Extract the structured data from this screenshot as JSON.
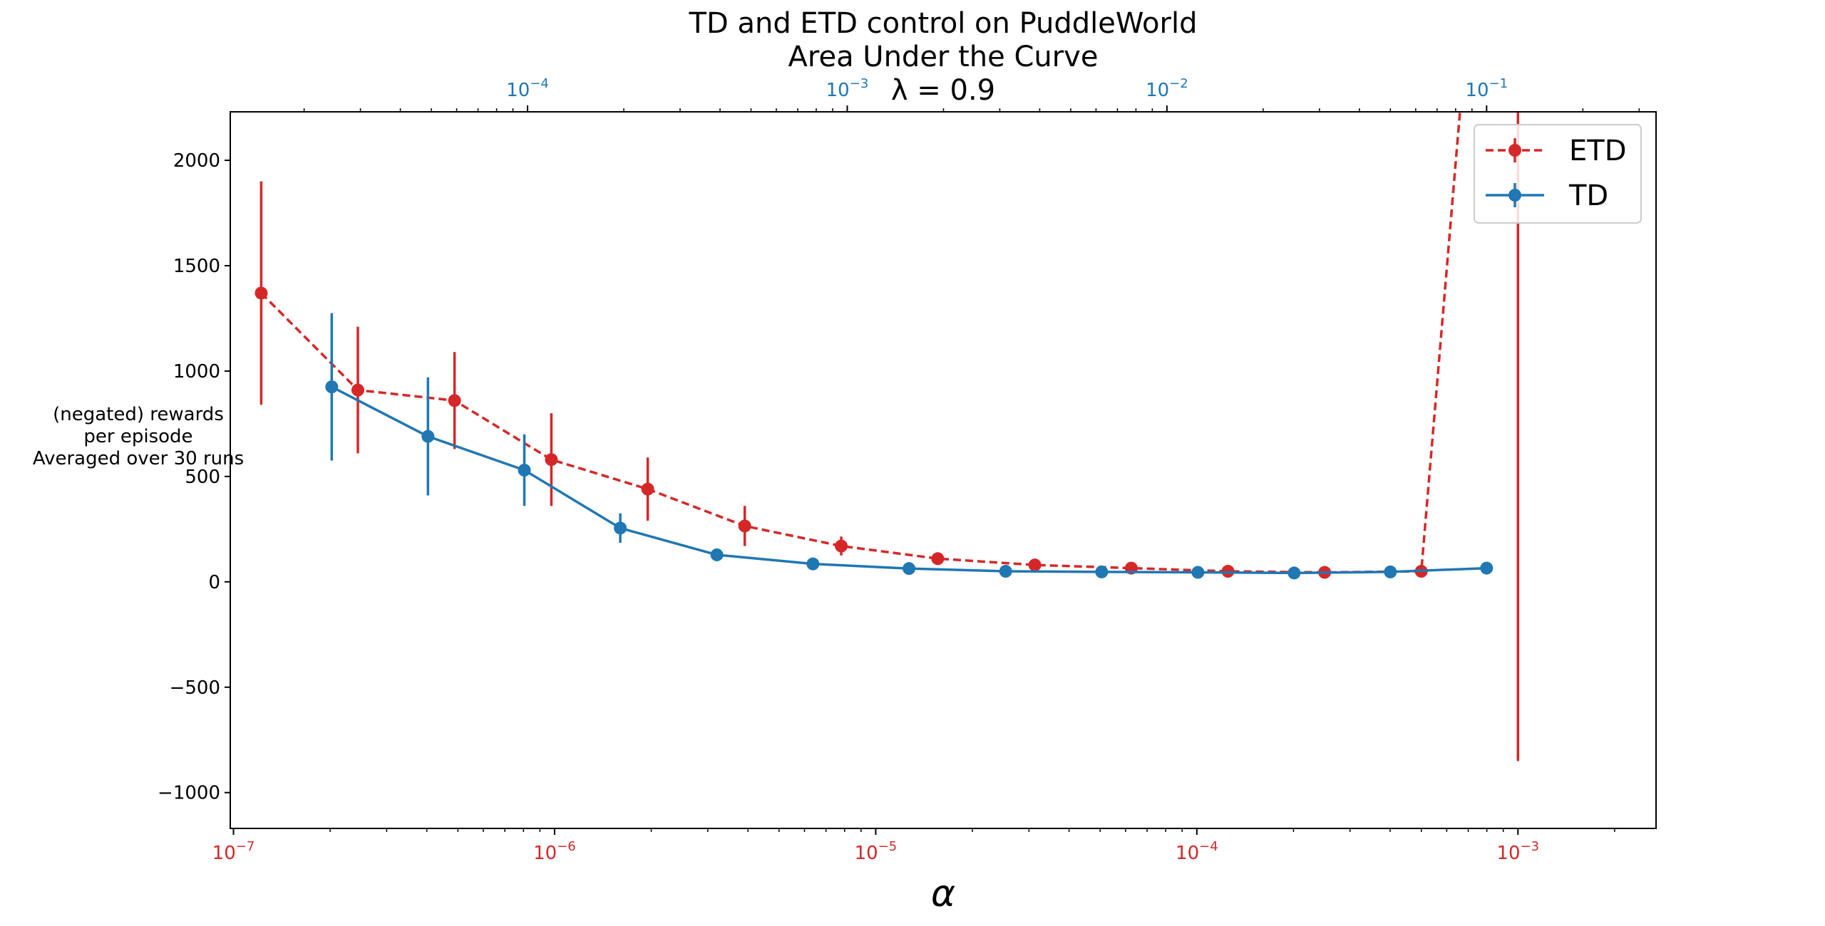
{
  "chart_data": {
    "type": "line",
    "title_lines": [
      "TD and ETD control on PuddleWorld",
      "Area Under the Curve",
      "λ = 0.9"
    ],
    "xlabel": "α",
    "ylabel_lines": [
      "(negated) rewards",
      "per episode",
      "Averaged over 30 runs"
    ],
    "x_scale": "log",
    "ylim": [
      -1170,
      2230
    ],
    "yticks": [
      -1000,
      -500,
      0,
      500,
      1000,
      1500,
      2000
    ],
    "ytick_labels": [
      "−1000",
      "−500",
      "0",
      "500",
      "1000",
      "1500",
      "2000"
    ],
    "grid": false,
    "legend_position": "top-right",
    "bottom_axis": {
      "color": "#d62728",
      "xlim_log10": [
        -7.01,
        -2.57
      ],
      "ticks": [
        {
          "base": "10",
          "exp": "−7",
          "log10": -7
        },
        {
          "base": "10",
          "exp": "−6",
          "log10": -6
        },
        {
          "base": "10",
          "exp": "−5",
          "log10": -5
        },
        {
          "base": "10",
          "exp": "−4",
          "log10": -4
        },
        {
          "base": "10",
          "exp": "−3",
          "log10": -3
        }
      ]
    },
    "top_axis": {
      "color": "#1f77b4",
      "xlim_log10": [
        -4.93,
        -0.47
      ],
      "ticks": [
        {
          "base": "10",
          "exp": "−4",
          "log10": -4
        },
        {
          "base": "10",
          "exp": "−3",
          "log10": -3
        },
        {
          "base": "10",
          "exp": "−2",
          "log10": -2
        },
        {
          "base": "10",
          "exp": "−1",
          "log10": -1
        }
      ]
    },
    "series": [
      {
        "name": "ETD",
        "color": "#d62728",
        "dash": true,
        "axis": "bottom",
        "x": [
          1.22e-07,
          2.44e-07,
          4.88e-07,
          9.77e-07,
          1.95e-06,
          3.91e-06,
          7.81e-06,
          1.56e-05,
          3.13e-05,
          6.25e-05,
          0.000125,
          0.00025,
          0.0005,
          0.001
        ],
        "y": [
          1370,
          910,
          860,
          580,
          440,
          265,
          170,
          110,
          80,
          65,
          50,
          45,
          50,
          5500
        ],
        "err": [
          530,
          300,
          230,
          220,
          150,
          95,
          45,
          22,
          14,
          9,
          8,
          8,
          8,
          6350
        ]
      },
      {
        "name": "TD",
        "color": "#1f77b4",
        "dash": false,
        "axis": "top",
        "x": [
          2.44e-05,
          4.88e-05,
          9.77e-05,
          0.000195,
          0.000391,
          0.000781,
          0.00156,
          0.00313,
          0.00625,
          0.0125,
          0.025,
          0.05,
          0.1
        ],
        "y": [
          925,
          690,
          530,
          255,
          128,
          85,
          63,
          50,
          47,
          45,
          42,
          47,
          65
        ],
        "err": [
          350,
          280,
          170,
          70,
          12,
          8,
          6,
          6,
          6,
          5,
          5,
          5,
          10
        ]
      }
    ]
  }
}
